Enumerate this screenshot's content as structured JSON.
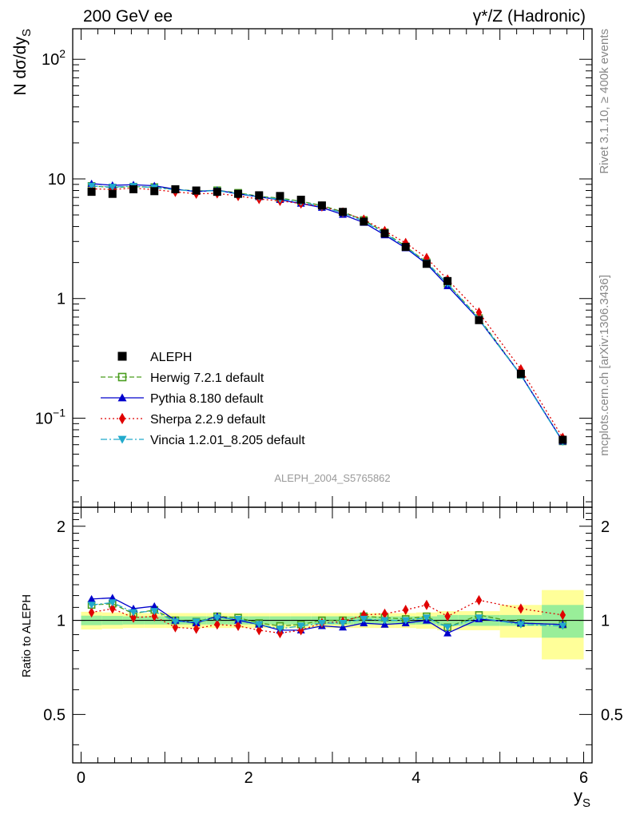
{
  "header": {
    "left": "200 GeV ee",
    "right": "γ*/Z (Hadronic)"
  },
  "side": {
    "rivet": "Rivet 3.1.10, ≥ 400k events",
    "source": "mcplots.cern.ch [arXiv:1306.3436]"
  },
  "watermark": "ALEPH_2004_S5765862",
  "chart_data": {
    "type": "line",
    "title": "200 GeV ee — γ*/Z (Hadronic)",
    "xlabel": "y_S",
    "ylabel": "N dσ/dy_S",
    "ratio_ylabel": "Ratio to ALEPH",
    "xlim": [
      -0.1,
      6.1
    ],
    "ylim": [
      0.018,
      180
    ],
    "yscale": "log",
    "ratio_ylim": [
      0.35,
      2.3
    ],
    "x_ticks": [
      "0",
      "2",
      "4",
      "6"
    ],
    "y_ticks": [
      "10^-1",
      "1",
      "10",
      "10^2"
    ],
    "ratio_ticks": [
      "0.5",
      "1",
      "2"
    ],
    "legend": {
      "placement": "middle-left"
    },
    "x": [
      0.125,
      0.375,
      0.625,
      0.875,
      1.125,
      1.375,
      1.625,
      1.875,
      2.125,
      2.375,
      2.625,
      2.875,
      3.125,
      3.375,
      3.625,
      3.875,
      4.125,
      4.375,
      4.75,
      5.25,
      5.75
    ],
    "x_bins": [
      [
        0,
        0.25
      ],
      [
        0.25,
        0.5
      ],
      [
        0.5,
        0.75
      ],
      [
        0.75,
        1
      ],
      [
        1,
        1.25
      ],
      [
        1.25,
        1.5
      ],
      [
        1.5,
        1.75
      ],
      [
        1.75,
        2
      ],
      [
        2,
        2.25
      ],
      [
        2.25,
        2.5
      ],
      [
        2.5,
        2.75
      ],
      [
        2.75,
        3
      ],
      [
        3,
        3.25
      ],
      [
        3.25,
        3.5
      ],
      [
        3.5,
        3.75
      ],
      [
        3.75,
        4
      ],
      [
        4,
        4.25
      ],
      [
        4.25,
        4.5
      ],
      [
        4.5,
        5
      ],
      [
        5,
        5.5
      ],
      [
        5.5,
        6
      ]
    ],
    "band_inner": [
      0.035,
      0.033,
      0.03,
      0.03,
      0.03,
      0.03,
      0.03,
      0.03,
      0.03,
      0.03,
      0.03,
      0.03,
      0.03,
      0.03,
      0.03,
      0.03,
      0.03,
      0.04,
      0.04,
      0.04,
      0.12
    ],
    "band_outer": [
      0.065,
      0.06,
      0.055,
      0.055,
      0.055,
      0.055,
      0.055,
      0.055,
      0.055,
      0.055,
      0.055,
      0.055,
      0.055,
      0.055,
      0.055,
      0.055,
      0.06,
      0.07,
      0.07,
      0.12,
      0.25
    ],
    "series": [
      {
        "name": "ALEPH",
        "color": "#000000",
        "marker": "square",
        "values": [
          7.8,
          7.5,
          8.2,
          7.9,
          8.2,
          8.0,
          7.8,
          7.5,
          7.3,
          7.2,
          6.7,
          6.0,
          5.3,
          4.4,
          3.5,
          2.7,
          1.95,
          1.4,
          0.66,
          0.235,
          0.066
        ]
      },
      {
        "name": "Herwig 7.2.1 default",
        "color": "#4a9d1f",
        "marker": "open-square",
        "dash": "6,3",
        "ratio": [
          1.12,
          1.13,
          1.05,
          1.08,
          1.0,
          0.99,
          1.03,
          1.02,
          0.98,
          0.96,
          0.97,
          1.0,
          1.0,
          1.03,
          1.02,
          1.01,
          1.03,
          0.95,
          1.04,
          0.98,
          0.97
        ]
      },
      {
        "name": "Pythia 8.180 default",
        "color": "#0000cc",
        "marker": "triangle-up",
        "dash": "",
        "ratio": [
          1.17,
          1.18,
          1.09,
          1.11,
          1.0,
          0.98,
          1.03,
          1.0,
          0.97,
          0.93,
          0.93,
          0.96,
          0.95,
          0.98,
          0.97,
          0.98,
          1.0,
          0.91,
          1.01,
          0.98,
          0.97
        ]
      },
      {
        "name": "Sherpa 2.2.9 default",
        "color": "#e00000",
        "marker": "diamond",
        "dash": "2,3",
        "ratio": [
          1.06,
          1.09,
          1.02,
          1.03,
          0.95,
          0.94,
          0.97,
          0.96,
          0.93,
          0.91,
          0.93,
          0.98,
          0.99,
          1.04,
          1.05,
          1.08,
          1.12,
          1.03,
          1.16,
          1.09,
          1.04
        ]
      },
      {
        "name": "Vincia 1.2.01_8.205 default",
        "color": "#22aacc",
        "marker": "triangle-down",
        "dash": "8,3,2,3",
        "ratio": [
          1.12,
          1.14,
          1.06,
          1.07,
          0.99,
          0.99,
          1.02,
          1.01,
          0.97,
          0.94,
          0.96,
          0.98,
          0.98,
          1.01,
          1.0,
          1.0,
          1.02,
          0.95,
          1.02,
          0.97,
          0.96
        ]
      }
    ]
  }
}
